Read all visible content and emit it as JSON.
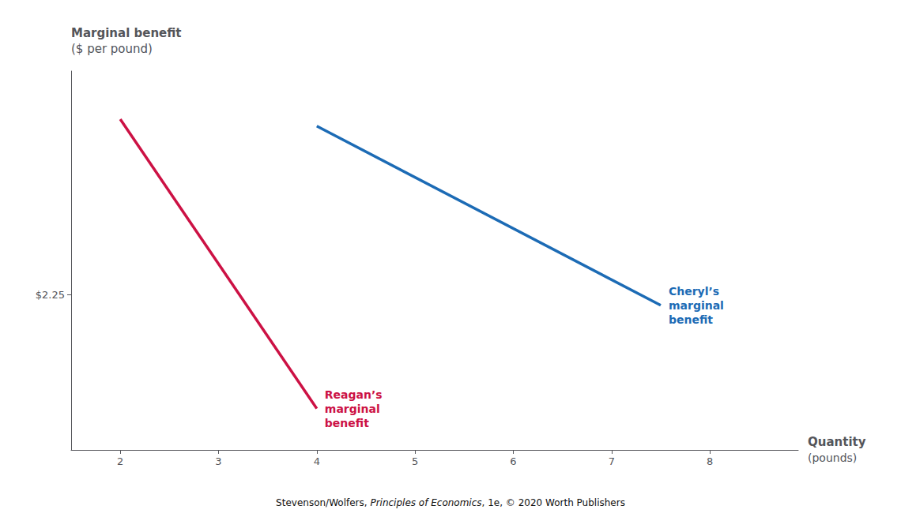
{
  "chart_data": {
    "type": "line",
    "series": [
      {
        "name": "Reagan’s\nmarginal\nbenefit",
        "color": "#CC1144",
        "x": [
          2.0,
          4.0
        ],
        "values": [
          4.8,
          0.6
        ]
      },
      {
        "name": "Cheryl’s\nmarginal\nbenefit",
        "color": "#1C6BB5",
        "x": [
          4.0,
          7.5
        ],
        "values": [
          4.7,
          2.1
        ]
      }
    ],
    "y_label": [
      "Marginal benefit",
      "($ per pound)"
    ],
    "x_label": [
      "Quantity",
      "(pounds)"
    ],
    "footnote": [
      "Stevenson/Wolfers, ",
      "Principles of Economics",
      ", 1e, © 2020 Worth Publishers"
    ],
    "xlim": [
      1.5,
      8.9
    ],
    "xticks": [
      2,
      3,
      4,
      5,
      6,
      7,
      8
    ],
    "ylim": [
      0.0,
      5.5
    ],
    "yticks": [
      {
        "value": 2.25,
        "label": "$2.25"
      }
    ],
    "grid": false
  }
}
